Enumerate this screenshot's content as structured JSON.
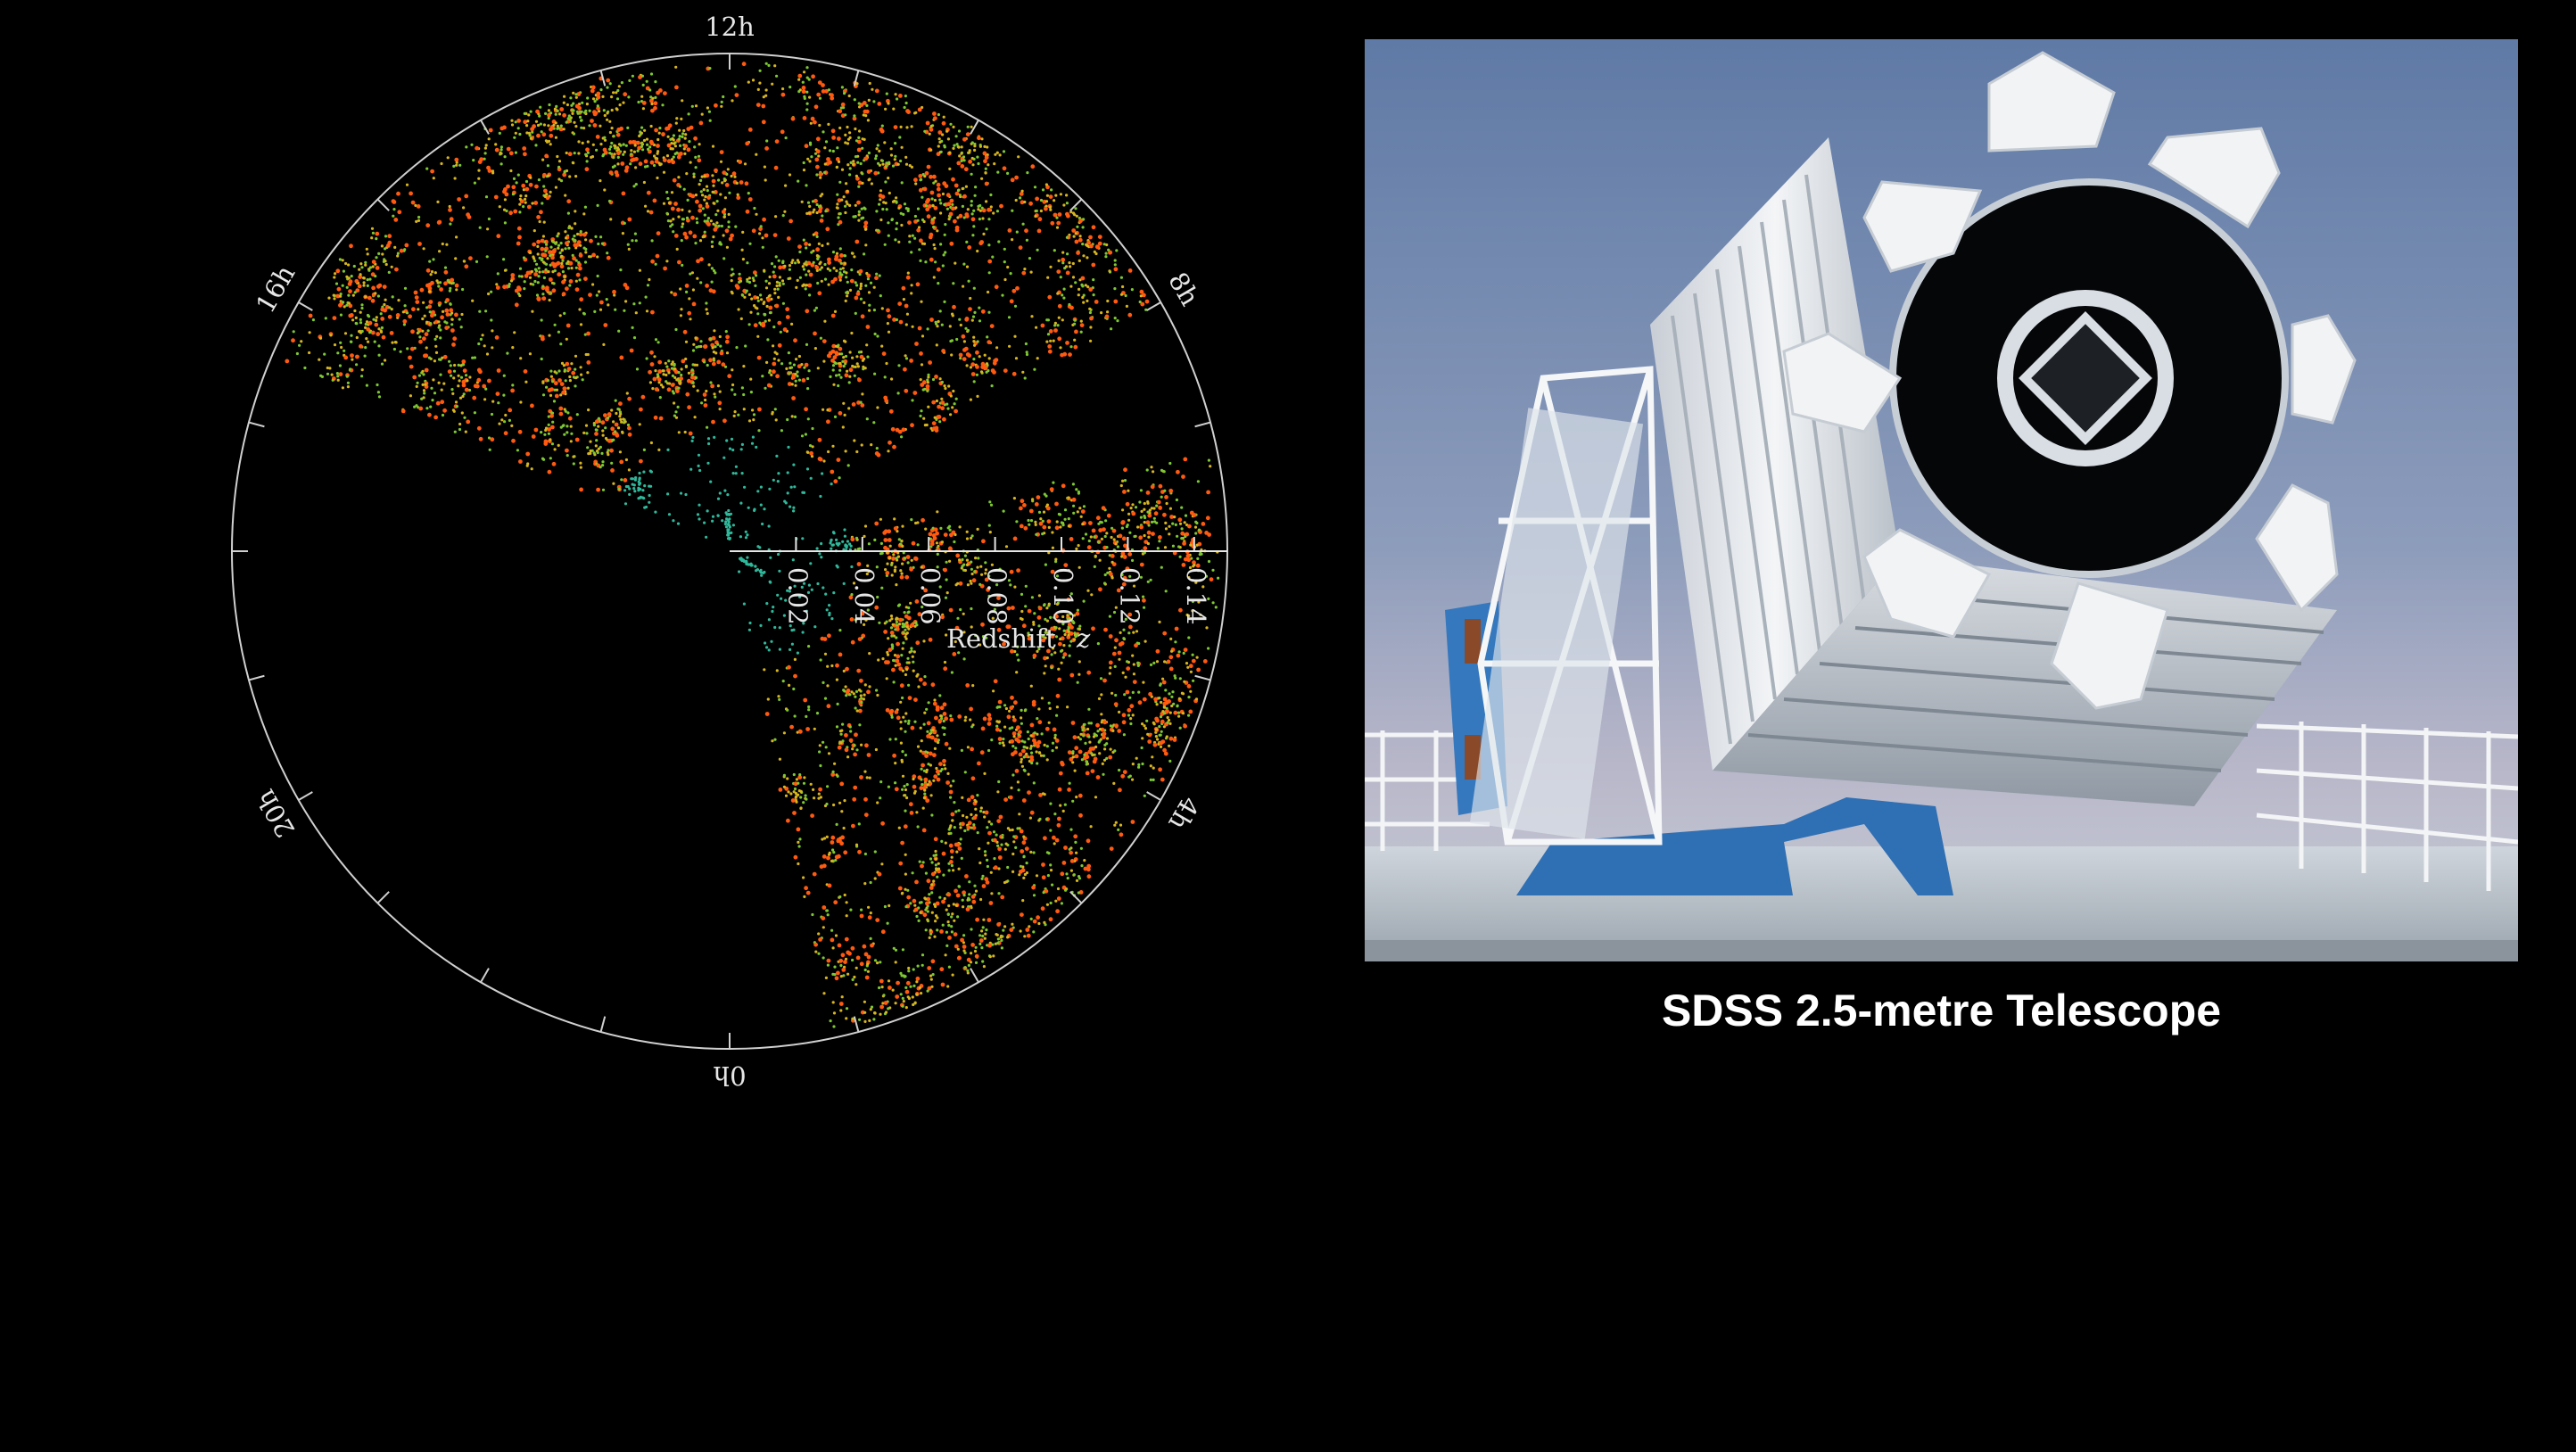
{
  "chart_data": {
    "type": "scatter",
    "subtype": "polar-wedge",
    "title": "",
    "angular_axis": {
      "labels": [
        "12h",
        "8h",
        "4h",
        "0h",
        "20h",
        "16h"
      ],
      "hours": [
        12,
        8,
        4,
        0,
        20,
        16
      ]
    },
    "radial_axis": {
      "label": "Redshift",
      "label_symbol": "z",
      "range": [
        0,
        0.15
      ],
      "ticks": [
        0.02,
        0.04,
        0.06,
        0.08,
        0.1,
        0.12,
        0.14
      ],
      "tick_labels": [
        "0.02",
        "0.04",
        "0.06",
        "0.08",
        "0.10",
        "0.12",
        "0.14"
      ]
    },
    "wedges": [
      {
        "name": "north",
        "hour_range": [
          8,
          16.5
        ]
      },
      {
        "name": "south",
        "hour_range": [
          0.8,
          6.8
        ]
      }
    ],
    "color_scale": [
      "#2fb89a",
      "#7dc832",
      "#d7b51f",
      "#ff5a10"
    ],
    "grid": false,
    "legend": "none"
  },
  "telescope": {
    "caption": "SDSS 2.5-metre Telescope",
    "sky_color": "#6f87ad",
    "structure_color": "#e8ecf0",
    "base_color": "#2f6fb3"
  }
}
